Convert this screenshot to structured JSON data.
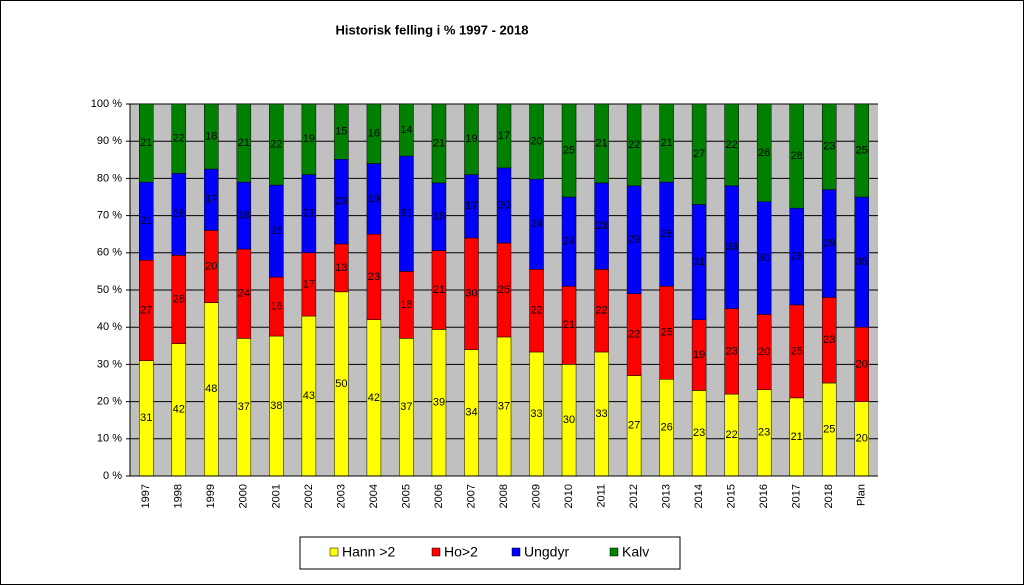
{
  "chart_data": {
    "type": "bar",
    "stacking": "percent",
    "title": "Historisk felling i %  1997 - 2018",
    "categories": [
      "1997",
      "1998",
      "1999",
      "2000",
      "2001",
      "2002",
      "2003",
      "2004",
      "2005",
      "2006",
      "2007",
      "2008",
      "2009",
      "2010",
      "2011",
      "2012",
      "2013",
      "2014",
      "2015",
      "2016",
      "2017",
      "2018",
      "Plan"
    ],
    "series": [
      {
        "name": "Hann >2",
        "color": "#ffff00",
        "values": [
          31,
          42,
          48,
          37,
          38,
          43,
          50,
          42,
          37,
          39,
          34,
          37,
          33,
          30,
          33,
          27,
          26,
          23,
          22,
          23,
          21,
          25,
          20
        ]
      },
      {
        "name": "Ho>2",
        "color": "#ff0000",
        "values": [
          27,
          28,
          20,
          24,
          16,
          17,
          13,
          23,
          18,
          21,
          30,
          25,
          22,
          21,
          22,
          22,
          25,
          19,
          23,
          20,
          25,
          23,
          20
        ]
      },
      {
        "name": "Ungdyr",
        "color": "#0000ff",
        "values": [
          21,
          26,
          17,
          18,
          25,
          21,
          23,
          19,
          31,
          18,
          17,
          20,
          24,
          24,
          23,
          29,
          28,
          31,
          33,
          30,
          26,
          29,
          35
        ]
      },
      {
        "name": "Kalv",
        "color": "#008000",
        "values": [
          21,
          22,
          18,
          21,
          22,
          19,
          15,
          16,
          14,
          21,
          19,
          17,
          20,
          25,
          21,
          22,
          21,
          27,
          22,
          26,
          28,
          23,
          25
        ]
      }
    ],
    "ylim": [
      0,
      100
    ],
    "yticks": [
      {
        "value": 0,
        "label": "0 %"
      },
      {
        "value": 10,
        "label": "10 %"
      },
      {
        "value": 20,
        "label": "20 %"
      },
      {
        "value": 30,
        "label": "30 %"
      },
      {
        "value": 40,
        "label": "40 %"
      },
      {
        "value": 50,
        "label": "50 %"
      },
      {
        "value": 60,
        "label": "60 %"
      },
      {
        "value": 70,
        "label": "70 %"
      },
      {
        "value": 80,
        "label": "80 %"
      },
      {
        "value": 90,
        "label": "90 %"
      },
      {
        "value": 100,
        "label": "100 %"
      }
    ],
    "grid": true
  }
}
